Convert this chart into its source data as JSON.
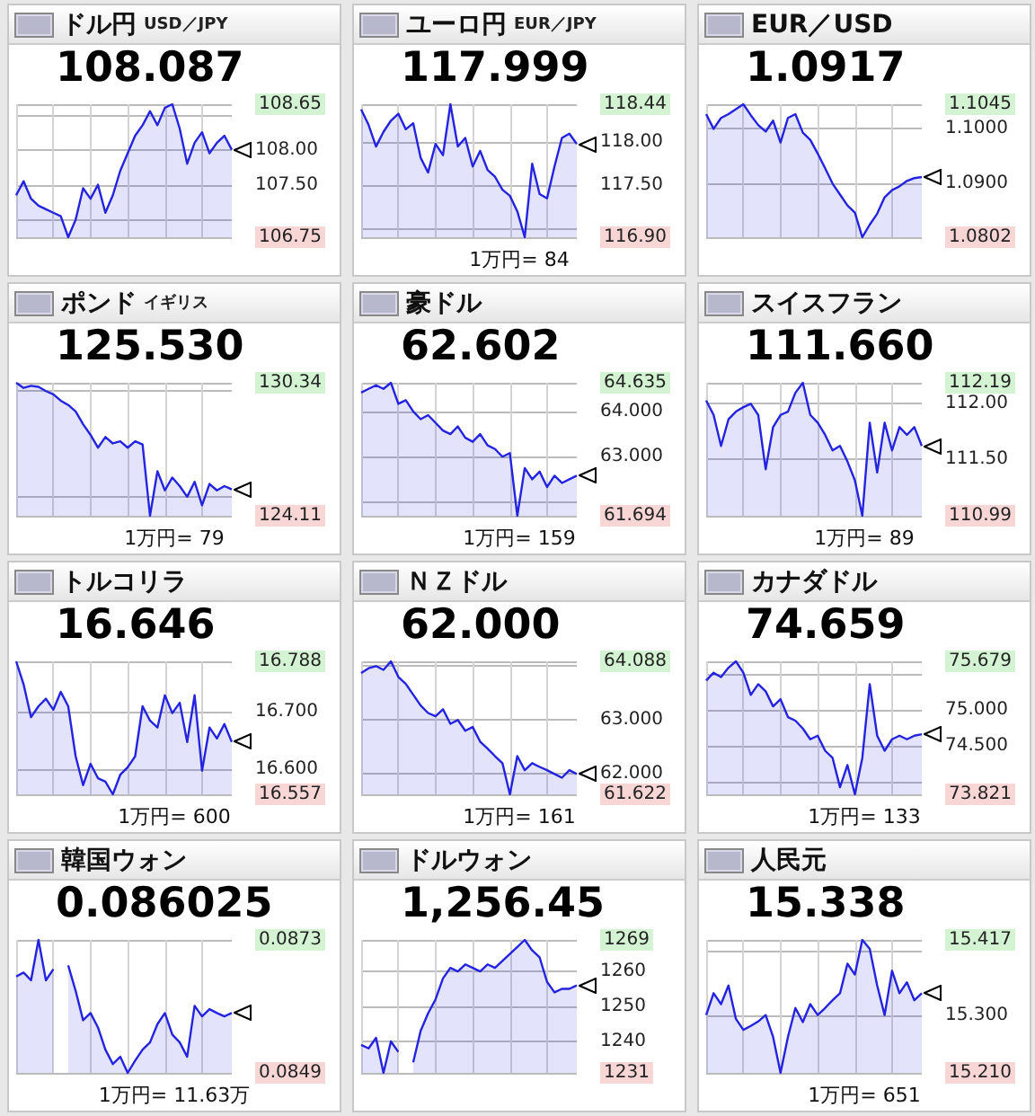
{
  "chart_data": [
    {
      "type": "area",
      "title": "ドル円",
      "subtitle": "USD／JPY",
      "categories": [
        null,
        null,
        null,
        null,
        null,
        null,
        null,
        null,
        null,
        null,
        null,
        null,
        null,
        null,
        null,
        null,
        null,
        null,
        null,
        null,
        null,
        null,
        null,
        null,
        null,
        null,
        null,
        null,
        null,
        null
      ],
      "color": "#2323e0",
      "values": [
        107.35,
        107.55,
        107.3,
        107.2,
        107.15,
        107.1,
        107.05,
        106.75,
        107.0,
        107.45,
        107.3,
        107.5,
        107.1,
        107.35,
        107.7,
        107.95,
        108.2,
        108.35,
        108.55,
        108.35,
        108.6,
        108.65,
        108.3,
        107.8,
        108.1,
        108.25,
        107.95,
        108.1,
        108.2,
        108.0
      ],
      "ylim": [
        106.75,
        108.65
      ],
      "yticks": [
        {
          "value": 106.75,
          "label": "106.75"
        },
        {
          "value": 107,
          "label": null
        },
        {
          "value": 107.5,
          "label": "107.50"
        },
        {
          "value": 108,
          "label": "108.00"
        },
        {
          "value": 108.5,
          "label": null
        },
        {
          "value": 108.65,
          "label": "108.65"
        }
      ],
      "grid": true,
      "tick_labels": "y",
      "annotations": [
        "108.087"
      ]
    },
    {
      "type": "area",
      "title": "ユーロ円",
      "subtitle": "EUR／JPY",
      "categories": [
        null,
        null,
        null,
        null,
        null,
        null,
        null,
        null,
        null,
        null,
        null,
        null,
        null,
        null,
        null,
        null,
        null,
        null,
        null,
        null,
        null,
        null,
        null,
        null,
        null,
        null,
        null,
        null,
        null,
        null
      ],
      "color": "#2323e0",
      "values": [
        118.38,
        118.2,
        117.95,
        118.12,
        118.25,
        118.33,
        118.15,
        118.22,
        117.82,
        117.65,
        117.98,
        117.85,
        118.44,
        117.95,
        118.05,
        117.72,
        117.9,
        117.68,
        117.6,
        117.45,
        117.38,
        117.2,
        116.9,
        117.75,
        117.4,
        117.35,
        117.72,
        118.05,
        118.1,
        117.98
      ],
      "ylim": [
        116.9,
        118.44
      ],
      "yticks": [
        {
          "value": 116.9,
          "label": "116.90"
        },
        {
          "value": 117,
          "label": null
        },
        {
          "value": 117.5,
          "label": "117.50"
        },
        {
          "value": 118,
          "label": "118.00"
        },
        {
          "value": 118.44,
          "label": "118.44"
        }
      ],
      "grid": true,
      "tick_labels": "y",
      "annotations": [
        "117.999",
        "1万円= 84"
      ]
    },
    {
      "type": "area",
      "title": "EUR／USD",
      "categories": [
        null,
        null,
        null,
        null,
        null,
        null,
        null,
        null,
        null,
        null,
        null,
        null,
        null,
        null,
        null,
        null,
        null,
        null,
        null,
        null,
        null,
        null,
        null,
        null,
        null,
        null,
        null,
        null,
        null,
        null
      ],
      "color": "#2323e0",
      "values": [
        1.1027,
        1.1,
        1.102,
        1.1027,
        1.1036,
        1.1045,
        1.1025,
        1.1007,
        1.0995,
        1.1015,
        1.0975,
        1.102,
        1.1027,
        1.0993,
        1.098,
        1.0955,
        1.0928,
        1.09,
        1.088,
        1.086,
        1.0847,
        1.0802,
        1.0825,
        1.0845,
        1.0875,
        1.0888,
        1.0895,
        1.0905,
        1.091,
        1.0912
      ],
      "ylim": [
        1.0802,
        1.1045
      ],
      "yticks": [
        {
          "value": 1.0802,
          "label": "1.0802"
        },
        {
          "value": 1.09,
          "label": "1.0900"
        },
        {
          "value": 1.1,
          "label": "1.1000"
        },
        {
          "value": 1.1045,
          "label": "1.1045"
        }
      ],
      "grid": true,
      "tick_labels": "y",
      "annotations": [
        "1.0917"
      ]
    },
    {
      "type": "area",
      "title": "ポンド",
      "subtitle": "イギリス",
      "categories": [
        null,
        null,
        null,
        null,
        null,
        null,
        null,
        null,
        null,
        null,
        null,
        null,
        null,
        null,
        null,
        null,
        null,
        null,
        null,
        null,
        null,
        null,
        null,
        null,
        null,
        null,
        null,
        null,
        null,
        null
      ],
      "color": "#2323e0",
      "values": [
        130.34,
        130.1,
        130.2,
        130.15,
        129.95,
        129.8,
        129.5,
        129.3,
        129.0,
        128.4,
        127.9,
        127.3,
        127.8,
        127.5,
        127.6,
        127.3,
        127.6,
        127.45,
        124.11,
        126.2,
        125.3,
        125.9,
        125.5,
        125.0,
        125.7,
        124.6,
        125.6,
        125.3,
        125.5,
        125.35
      ],
      "ylim": [
        124.11,
        130.34
      ],
      "yticks": [
        {
          "value": 124.11,
          "label": "124.11"
        },
        {
          "value": 125,
          "label": null
        },
        {
          "value": 130,
          "label": null
        },
        {
          "value": 130.34,
          "label": "130.34"
        }
      ],
      "grid": true,
      "tick_labels": "y",
      "annotations": [
        "125.530",
        "1万円= 79"
      ]
    },
    {
      "type": "area",
      "title": "豪ドル",
      "categories": [
        null,
        null,
        null,
        null,
        null,
        null,
        null,
        null,
        null,
        null,
        null,
        null,
        null,
        null,
        null,
        null,
        null,
        null,
        null,
        null,
        null,
        null,
        null,
        null,
        null,
        null,
        null,
        null,
        null,
        null
      ],
      "color": "#2323e0",
      "values": [
        64.42,
        64.5,
        64.58,
        64.5,
        64.635,
        64.17,
        64.25,
        64.0,
        63.83,
        63.92,
        63.75,
        63.58,
        63.5,
        63.67,
        63.42,
        63.33,
        63.5,
        63.25,
        63.17,
        63.0,
        63.08,
        61.694,
        62.75,
        62.5,
        62.67,
        62.33,
        62.58,
        62.42,
        62.5,
        62.58
      ],
      "ylim": [
        61.694,
        64.635
      ],
      "yticks": [
        {
          "value": 61.694,
          "label": "61.694"
        },
        {
          "value": 62,
          "label": null
        },
        {
          "value": 63,
          "label": "63.000"
        },
        {
          "value": 64,
          "label": "64.000"
        },
        {
          "value": 64.635,
          "label": "64.635"
        }
      ],
      "grid": true,
      "tick_labels": "y",
      "annotations": [
        "62.602",
        "1万円= 159"
      ]
    },
    {
      "type": "area",
      "title": "スイスフラン",
      "categories": [
        null,
        null,
        null,
        null,
        null,
        null,
        null,
        null,
        null,
        null,
        null,
        null,
        null,
        null,
        null,
        null,
        null,
        null,
        null,
        null,
        null,
        null,
        null,
        null,
        null,
        null,
        null,
        null,
        null,
        null
      ],
      "color": "#2323e0",
      "values": [
        112.03,
        111.9,
        111.62,
        111.86,
        111.93,
        111.97,
        112.0,
        111.9,
        111.41,
        111.79,
        111.9,
        111.93,
        112.1,
        112.19,
        111.9,
        111.83,
        111.72,
        111.58,
        111.62,
        111.48,
        111.31,
        110.99,
        111.83,
        111.38,
        111.83,
        111.58,
        111.79,
        111.72,
        111.79,
        111.62
      ],
      "ylim": [
        110.99,
        112.19
      ],
      "yticks": [
        {
          "value": 110.99,
          "label": "110.99"
        },
        {
          "value": 111.5,
          "label": "111.50"
        },
        {
          "value": 112,
          "label": "112.00"
        },
        {
          "value": 112.19,
          "label": "112.19"
        }
      ],
      "grid": true,
      "tick_labels": "y",
      "annotations": [
        "111.660",
        "1万円= 89"
      ]
    },
    {
      "type": "area",
      "title": "トルコリラ",
      "categories": [
        null,
        null,
        null,
        null,
        null,
        null,
        null,
        null,
        null,
        null,
        null,
        null,
        null,
        null,
        null,
        null,
        null,
        null,
        null,
        null,
        null,
        null,
        null,
        null,
        null,
        null,
        null,
        null,
        null,
        null
      ],
      "color": "#2323e0",
      "values": [
        16.788,
        16.748,
        16.691,
        16.71,
        16.723,
        16.704,
        16.735,
        16.71,
        16.623,
        16.573,
        16.61,
        16.585,
        16.579,
        16.557,
        16.591,
        16.604,
        16.623,
        16.71,
        16.685,
        16.673,
        16.729,
        16.698,
        16.716,
        16.648,
        16.729,
        16.598,
        16.673,
        16.654,
        16.679,
        16.648
      ],
      "ylim": [
        16.557,
        16.788
      ],
      "yticks": [
        {
          "value": 16.557,
          "label": "16.557"
        },
        {
          "value": 16.6,
          "label": "16.600"
        },
        {
          "value": 16.7,
          "label": "16.700"
        },
        {
          "value": 16.788,
          "label": "16.788"
        }
      ],
      "grid": true,
      "tick_labels": "y",
      "annotations": [
        "16.646",
        "1万円= 600"
      ]
    },
    {
      "type": "area",
      "title": "ＮＺドル",
      "categories": [
        null,
        null,
        null,
        null,
        null,
        null,
        null,
        null,
        null,
        null,
        null,
        null,
        null,
        null,
        null,
        null,
        null,
        null,
        null,
        null,
        null,
        null,
        null,
        null,
        null,
        null,
        null,
        null,
        null,
        null
      ],
      "color": "#2323e0",
      "values": [
        63.87,
        63.96,
        64.0,
        63.93,
        64.088,
        63.8,
        63.67,
        63.47,
        63.27,
        63.13,
        63.07,
        63.2,
        62.93,
        63.0,
        62.8,
        62.87,
        62.6,
        62.47,
        62.33,
        62.2,
        61.622,
        62.33,
        62.07,
        62.2,
        62.13,
        62.07,
        62.0,
        61.93,
        62.07,
        62.0
      ],
      "ylim": [
        61.622,
        64.088
      ],
      "yticks": [
        {
          "value": 61.622,
          "label": "61.622"
        },
        {
          "value": 62,
          "label": "62.000"
        },
        {
          "value": 63,
          "label": "63.000"
        },
        {
          "value": 64,
          "label": null
        },
        {
          "value": 64.088,
          "label": "64.088"
        }
      ],
      "grid": true,
      "tick_labels": "y",
      "annotations": [
        "62.000",
        "1万円= 161"
      ]
    },
    {
      "type": "area",
      "title": "カナダドル",
      "categories": [
        null,
        null,
        null,
        null,
        null,
        null,
        null,
        null,
        null,
        null,
        null,
        null,
        null,
        null,
        null,
        null,
        null,
        null,
        null,
        null,
        null,
        null,
        null,
        null,
        null,
        null,
        null,
        null,
        null,
        null
      ],
      "color": "#2323e0",
      "values": [
        75.41,
        75.52,
        75.46,
        75.59,
        75.679,
        75.52,
        75.21,
        75.36,
        75.26,
        75.05,
        75.15,
        74.9,
        74.85,
        74.74,
        74.59,
        74.64,
        74.43,
        74.33,
        73.92,
        74.23,
        73.821,
        74.33,
        75.36,
        74.64,
        74.43,
        74.59,
        74.64,
        74.59,
        74.64,
        74.66
      ],
      "ylim": [
        73.821,
        75.679
      ],
      "yticks": [
        {
          "value": 73.821,
          "label": "73.821"
        },
        {
          "value": 74,
          "label": null
        },
        {
          "value": 74.5,
          "label": "74.500"
        },
        {
          "value": 75,
          "label": "75.000"
        },
        {
          "value": 75.5,
          "label": null
        },
        {
          "value": 75.679,
          "label": "75.679"
        }
      ],
      "grid": true,
      "tick_labels": "y",
      "annotations": [
        "74.659",
        "1万円= 133"
      ]
    },
    {
      "type": "area",
      "title": "韓国ウォン",
      "categories": [
        null,
        null,
        null,
        null,
        null,
        null,
        null,
        null,
        null,
        null,
        null,
        null,
        null,
        null,
        null,
        null,
        null,
        null,
        null,
        null,
        null,
        null,
        null,
        null,
        null,
        null,
        null,
        null,
        null,
        null
      ],
      "color": "#2323e0",
      "values": [
        0.08664,
        0.08671,
        0.08657,
        0.0873,
        0.08657,
        0.08677,
        null,
        0.08684,
        0.08638,
        0.08585,
        0.08598,
        0.08572,
        0.08532,
        0.08506,
        0.08519,
        0.0849,
        0.08512,
        0.08532,
        0.08545,
        0.08578,
        0.08598,
        0.08559,
        0.08545,
        0.08519,
        0.08611,
        0.08592,
        0.08605,
        0.08598,
        0.08592,
        0.08598
      ],
      "ylim": [
        0.0849,
        0.0873
      ],
      "yticks": [
        {
          "value": 0.0849,
          "label": "0.0849"
        },
        {
          "value": 0.0873,
          "label": "0.0873"
        }
      ],
      "grid": true,
      "tick_labels": "y",
      "annotations": [
        "0.086025",
        "1万円= 11.63万"
      ]
    },
    {
      "type": "area",
      "title": "ドルウォン",
      "categories": [
        null,
        null,
        null,
        null,
        null,
        null,
        null,
        null,
        null,
        null,
        null,
        null,
        null,
        null,
        null,
        null,
        null,
        null,
        null,
        null,
        null,
        null,
        null,
        null,
        null,
        null,
        null,
        null,
        null,
        null
      ],
      "color": "#2323e0",
      "values": [
        1239,
        1238,
        1241,
        1231,
        1240,
        1237,
        null,
        1234,
        1243,
        1248,
        1252,
        1258,
        1261,
        1260,
        1262,
        1261,
        1260,
        1262,
        1261,
        1263,
        1265,
        1267,
        1269,
        1266,
        1264,
        1257,
        1254,
        1255,
        1255,
        1256
      ],
      "ylim": [
        1231,
        1269
      ],
      "yticks": [
        {
          "value": 1231,
          "label": "1231"
        },
        {
          "value": 1240,
          "label": "1240"
        },
        {
          "value": 1250,
          "label": "1250"
        },
        {
          "value": 1260,
          "label": "1260"
        },
        {
          "value": 1269,
          "label": "1269"
        }
      ],
      "grid": true,
      "tick_labels": "y",
      "annotations": [
        "1,256.45"
      ]
    },
    {
      "type": "area",
      "title": "人民元",
      "categories": [
        null,
        null,
        null,
        null,
        null,
        null,
        null,
        null,
        null,
        null,
        null,
        null,
        null,
        null,
        null,
        null,
        null,
        null,
        null,
        null,
        null,
        null,
        null,
        null,
        null,
        null,
        null,
        null,
        null,
        null
      ],
      "color": "#2323e0",
      "values": [
        15.3,
        15.334,
        15.317,
        15.346,
        15.294,
        15.277,
        15.283,
        15.29,
        15.3,
        15.266,
        15.21,
        15.266,
        15.311,
        15.289,
        15.317,
        15.3,
        15.311,
        15.323,
        15.334,
        15.38,
        15.363,
        15.417,
        15.403,
        15.346,
        15.3,
        15.369,
        15.334,
        15.351,
        15.323,
        15.334
      ],
      "ylim": [
        15.21,
        15.417
      ],
      "yticks": [
        {
          "value": 15.21,
          "label": "15.210"
        },
        {
          "value": 15.3,
          "label": "15.300"
        },
        {
          "value": 15.4,
          "label": null
        },
        {
          "value": 15.417,
          "label": "15.417"
        }
      ],
      "grid": true,
      "tick_labels": "y",
      "annotations": [
        "15.338",
        "1万円= 651"
      ]
    }
  ]
}
